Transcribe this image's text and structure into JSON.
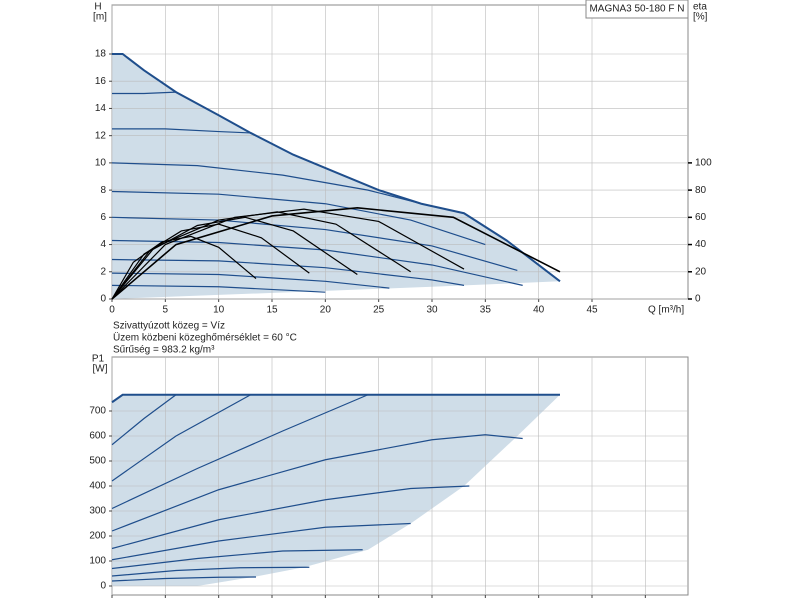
{
  "chart_data": [
    {
      "type": "line",
      "title": "MAGNA3 50-180 F N",
      "ylabel": "H",
      "yunit": "[m]",
      "y2label": "eta",
      "y2unit": "[%]",
      "xlabel": "Q [m³/h]",
      "notes": [
        "Szivattyúzott közeg = Víz",
        "Üzem közbeni közeghőmérséklet = 60 °C",
        "Sűrűség = 983.2 kg/m³"
      ],
      "xlim": [
        0,
        54
      ],
      "xticks": [
        0,
        5,
        10,
        15,
        20,
        25,
        30,
        35,
        40,
        45
      ],
      "xtick_labels": true,
      "ylim": [
        0,
        21.6
      ],
      "yticks": [
        0,
        2,
        4,
        6,
        8,
        10,
        12,
        14,
        16,
        18
      ],
      "y2lim": [
        0,
        216
      ],
      "y2ticks": [
        0,
        20,
        40,
        60,
        80,
        100
      ],
      "grid": true,
      "shade": "#cfdde8",
      "series": [
        {
          "color": "#1f4e8c",
          "width": 2,
          "x": [
            0,
            1,
            3,
            6,
            10,
            13,
            17,
            21,
            25,
            29,
            33,
            37,
            42
          ],
          "values": [
            18,
            18,
            16.8,
            15.2,
            13.5,
            12.2,
            10.6,
            9.3,
            8.0,
            7.0,
            6.3,
            4.3,
            1.3
          ]
        },
        {
          "color": "#1f4e8c",
          "x": [
            0,
            3,
            6
          ],
          "values": [
            15.1,
            15.1,
            15.2
          ]
        },
        {
          "color": "#1f4e8c",
          "x": [
            0,
            5,
            10,
            13
          ],
          "values": [
            12.5,
            12.5,
            12.3,
            12.2
          ]
        },
        {
          "color": "#1f4e8c",
          "x": [
            0,
            8,
            16,
            24,
            30
          ],
          "values": [
            10,
            9.8,
            9.1,
            8,
            6.8
          ]
        },
        {
          "color": "#1f4e8c",
          "x": [
            0,
            10,
            20,
            28,
            35
          ],
          "values": [
            7.9,
            7.7,
            7.0,
            5.8,
            4.0
          ]
        },
        {
          "color": "#1f4e8c",
          "x": [
            0,
            10,
            20,
            30,
            38
          ],
          "values": [
            6,
            5.8,
            5.1,
            3.9,
            2.1
          ]
        },
        {
          "color": "#1f4e8c",
          "x": [
            0,
            10,
            20,
            30,
            38.5
          ],
          "values": [
            4.3,
            4.15,
            3.6,
            2.5,
            1.0
          ]
        },
        {
          "color": "#1f4e8c",
          "x": [
            0,
            10,
            20,
            30,
            33
          ],
          "values": [
            2.9,
            2.8,
            2.3,
            1.4,
            1.0
          ]
        },
        {
          "color": "#1f4e8c",
          "x": [
            0,
            10,
            20,
            26
          ],
          "values": [
            1.9,
            1.8,
            1.3,
            0.8
          ]
        },
        {
          "color": "#1f4e8c",
          "x": [
            0,
            10,
            20
          ],
          "values": [
            1.0,
            0.9,
            0.5
          ]
        },
        {
          "color": "#000000",
          "width": 1.6,
          "axis": "y2",
          "x": [
            0,
            6,
            15,
            23,
            32,
            42
          ],
          "values": [
            0,
            40,
            61,
            67,
            60,
            20
          ]
        },
        {
          "color": "#000000",
          "axis": "y2",
          "x": [
            0,
            5,
            11.5,
            18,
            25,
            33
          ],
          "values": [
            0,
            40,
            60,
            66,
            57,
            22
          ]
        },
        {
          "color": "#000000",
          "axis": "y2",
          "x": [
            0,
            4,
            10,
            15.5,
            21,
            28
          ],
          "values": [
            0,
            38,
            58,
            64,
            55,
            20
          ]
        },
        {
          "color": "#000000",
          "axis": "y2",
          "x": [
            0,
            3.5,
            8,
            12.5,
            17,
            23
          ],
          "values": [
            0,
            35,
            54,
            60,
            50,
            18
          ]
        },
        {
          "color": "#000000",
          "axis": "y2",
          "x": [
            0,
            3,
            6.5,
            10,
            14,
            18.5
          ],
          "values": [
            0,
            33,
            50,
            55,
            45,
            19
          ]
        },
        {
          "color": "#000000",
          "axis": "y2",
          "x": [
            0,
            2,
            4.7,
            7.4,
            10,
            13.5
          ],
          "values": [
            0,
            27,
            42,
            46,
            38,
            15
          ]
        },
        {
          "color": "#cfdde8",
          "x": [
            0,
            10,
            20,
            30,
            42
          ],
          "values": [
            0,
            0.3,
            0.6,
            0.9,
            1.3
          ]
        }
      ]
    },
    {
      "type": "line",
      "ylabel": "P1",
      "yunit": "[W]",
      "xlim": [
        0,
        54
      ],
      "xticks": [
        0,
        5,
        10,
        15,
        20,
        25,
        30,
        35,
        40,
        45,
        50
      ],
      "xtick_labels": false,
      "ylim": [
        -36,
        916
      ],
      "yticks": [
        0,
        100,
        200,
        300,
        400,
        500,
        600,
        700
      ],
      "grid": true,
      "shade": "#cfdde8",
      "series": [
        {
          "color": "#1f4e8c",
          "width": 2,
          "x": [
            0,
            1,
            42
          ],
          "values": [
            735,
            765,
            765
          ]
        },
        {
          "color": "#1f4e8c",
          "x": [
            0,
            3,
            6
          ],
          "values": [
            565,
            670,
            765
          ]
        },
        {
          "color": "#1f4e8c",
          "x": [
            0,
            6,
            13
          ],
          "values": [
            420,
            600,
            765
          ]
        },
        {
          "color": "#1f4e8c",
          "x": [
            0,
            8,
            16,
            24
          ],
          "values": [
            310,
            470,
            620,
            765
          ]
        },
        {
          "color": "#1f4e8c",
          "x": [
            0,
            10,
            20,
            30,
            35,
            38.5
          ],
          "values": [
            220,
            385,
            505,
            585,
            605,
            590
          ]
        },
        {
          "color": "#1f4e8c",
          "x": [
            0,
            10,
            20,
            28,
            33.5
          ],
          "values": [
            150,
            265,
            345,
            390,
            400
          ]
        },
        {
          "color": "#1f4e8c",
          "x": [
            0,
            10,
            20,
            28
          ],
          "values": [
            105,
            180,
            235,
            250
          ]
        },
        {
          "color": "#1f4e8c",
          "x": [
            0,
            8,
            16,
            23.5
          ],
          "values": [
            70,
            110,
            140,
            145
          ]
        },
        {
          "color": "#1f4e8c",
          "x": [
            0,
            6,
            12,
            18.5
          ],
          "values": [
            40,
            62,
            73,
            75
          ]
        },
        {
          "color": "#1f4e8c",
          "x": [
            0,
            5,
            10,
            13.5
          ],
          "values": [
            20,
            30,
            35,
            36
          ]
        },
        {
          "color": "#cfdde8",
          "x": [
            0,
            8,
            13.5,
            18,
            24,
            28,
            33,
            38,
            42
          ],
          "values": [
            0,
            0,
            38,
            75,
            145,
            250,
            400,
            600,
            765
          ]
        }
      ]
    }
  ]
}
